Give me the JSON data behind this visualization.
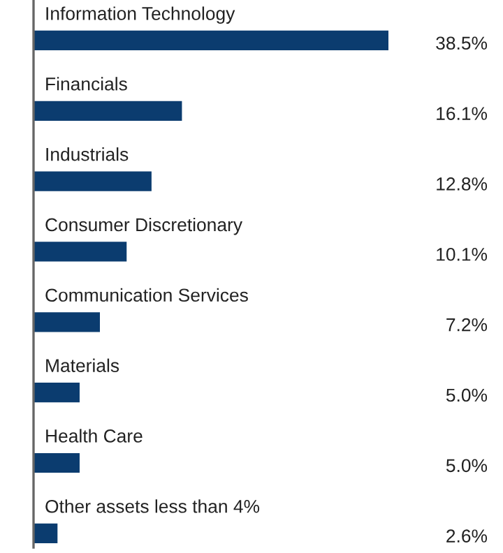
{
  "chart_data": {
    "type": "bar",
    "orientation": "horizontal",
    "categories": [
      "Information Technology",
      "Financials",
      "Industrials",
      "Consumer Discretionary",
      "Communication Services",
      "Materials",
      "Health Care",
      "Other assets less than 4%"
    ],
    "values": [
      38.5,
      16.1,
      12.8,
      10.1,
      7.2,
      5.0,
      5.0,
      2.6
    ],
    "value_labels": [
      "38.5%",
      "16.1%",
      "12.8%",
      "10.1%",
      "7.2%",
      "5.0%",
      "5.0%",
      "2.6%"
    ],
    "color": "#0b3c6f"
  }
}
